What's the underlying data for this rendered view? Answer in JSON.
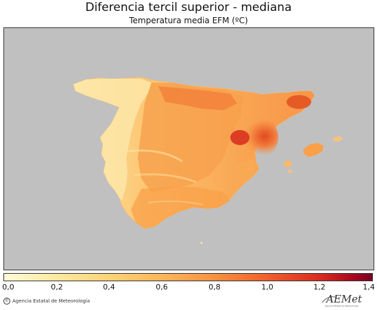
{
  "title": "Diferencia tercil superior - mediana",
  "subtitle": "Temperatura media EFM (ºC)",
  "colorbar": {
    "ticks": [
      "0,0",
      "0,2",
      "0,4",
      "0,6",
      "0,8",
      "1,0",
      "1,2",
      "1,4"
    ],
    "range": [
      0.0,
      1.4
    ],
    "colors": [
      "#fffbd8",
      "#fde9a2",
      "#fcd276",
      "#fbb55a",
      "#f8923f",
      "#f0612b",
      "#d92a1f",
      "#a5081f",
      "#7a0020"
    ]
  },
  "map": {
    "background_color": "#c0c0c0",
    "region": "Península Ibérica y Baleares",
    "value_scale": "0,0 – 1,4 ºC"
  },
  "footer": {
    "credit": "Agencia Estatal de Meteorología",
    "logo_text": "AEMet",
    "logo_subtext": "Agencia Estatal de Meteorología"
  }
}
